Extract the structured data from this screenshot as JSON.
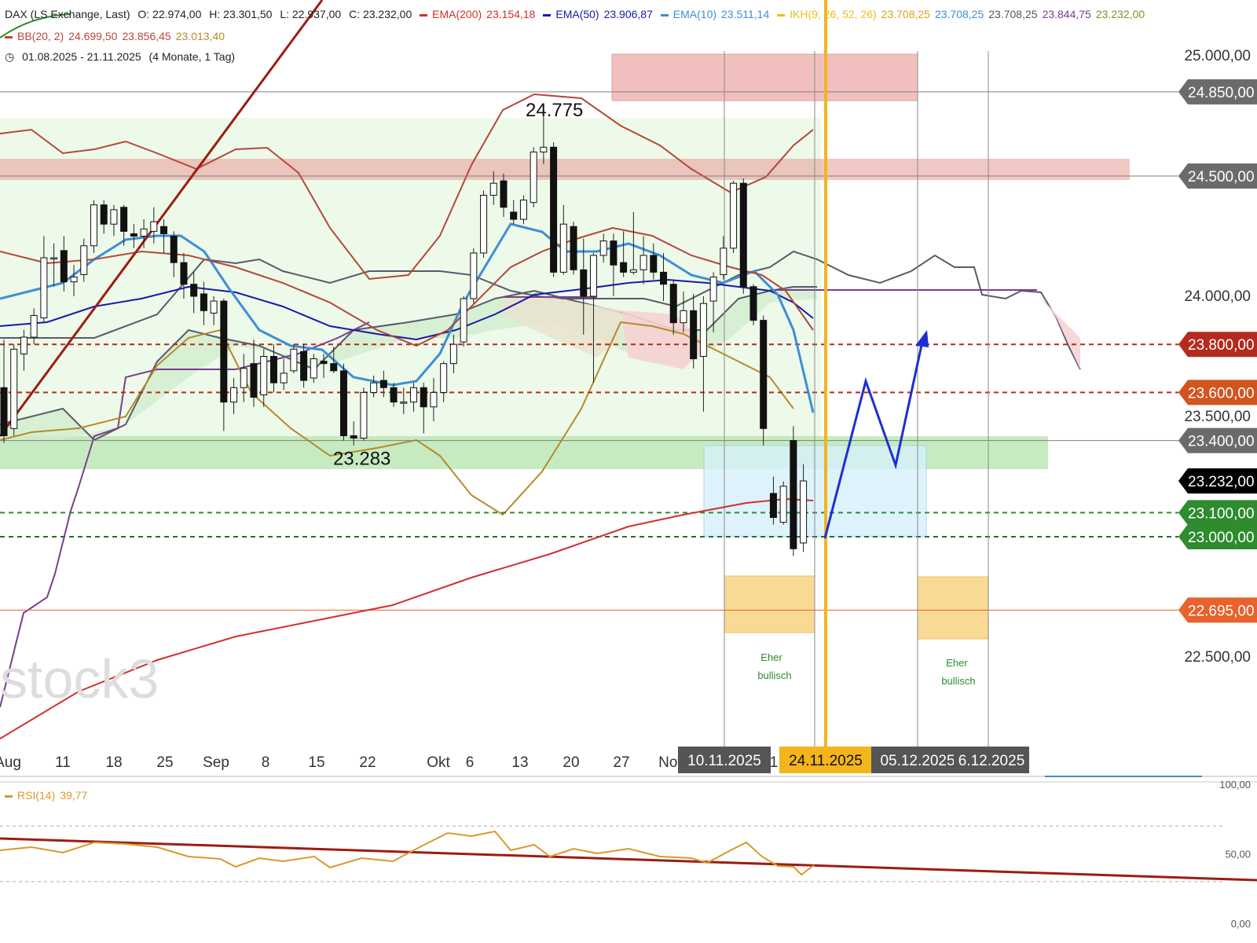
{
  "header": {
    "instrument": "DAX (LS Exchange, Last)",
    "open": "O: 22.974,00",
    "high": "H: 23.301,50",
    "low": "L: 22.937,00",
    "close": "C: 23.232,00",
    "ema200": "EMA(200)",
    "ema200_val": "23.154,18",
    "ema50": "EMA(50)",
    "ema50_val": "23.906,87",
    "ema10": "EMA(10)",
    "ema10_val": "23.511,14",
    "ikh": "IKH(9, 26, 52, 26)",
    "ikh_v1": "23.708,25",
    "ikh_v2": "23.708,25",
    "ikh_v3": "23.708,25",
    "ikh_v4": "23.844,75",
    "ikh_v5": "23.232,00",
    "bb": "BB(20, 2)",
    "bb_v1": "24.699,50",
    "bb_v2": "23.856,45",
    "bb_v3": "23.013,40",
    "range": "01.08.2025 - 21.11.2025",
    "range_info": "(4 Monate, 1 Tag)"
  },
  "colors": {
    "ema200": "#d0312d",
    "ema50": "#1a1aa8",
    "ema10": "#3c8fd6",
    "ikh": "#e8c11c",
    "bb": "#b5473a",
    "rsi": "#d89a2b"
  },
  "chart_data": {
    "type": "candlestick",
    "y_axis": {
      "ylim": [
        22300,
        25100
      ],
      "ticks": [
        "25.000,00",
        "24.000,00",
        "23.500,00",
        "22.500,00"
      ],
      "tick_values": [
        25000,
        24000,
        23500,
        22500
      ]
    },
    "x_axis": {
      "ticks": [
        "Aug",
        "11",
        "18",
        "25",
        "Sep",
        "8",
        "15",
        "22",
        "Okt",
        "6",
        "13",
        "20",
        "27",
        "Nov",
        "1",
        "2"
      ],
      "date_tags": [
        "10.11.2025",
        "24.11.2025",
        "05.12.2025",
        "6.12.2025"
      ]
    },
    "price_tags": [
      {
        "label": "24.850,00",
        "value": 24850,
        "color": "#6b6b6b"
      },
      {
        "label": "24.500,00",
        "value": 24500,
        "color": "#6b6b6b"
      },
      {
        "label": "23.800,00",
        "value": 23800,
        "color": "#b42a1e"
      },
      {
        "label": "23.600,00",
        "value": 23600,
        "color": "#d2541e"
      },
      {
        "label": "23.400,00",
        "value": 23400,
        "color": "#6b6b6b"
      },
      {
        "label": "23.232,00",
        "value": 23232,
        "color": "#000000"
      },
      {
        "label": "23.100,00",
        "value": 23100,
        "color": "#2e8b2e"
      },
      {
        "label": "23.000,00",
        "value": 23000,
        "color": "#2e8b2e"
      },
      {
        "label": "22.695,00",
        "value": 22695,
        "color": "#e8622b"
      }
    ],
    "annotations": [
      {
        "text": "24.775",
        "value": 24775
      },
      {
        "text": "23.283",
        "value": 23283
      },
      {
        "text": "Eher",
        "value": 22505
      },
      {
        "text": "bullisch",
        "value": 22430
      }
    ],
    "annotations_right": [
      {
        "text": "Eher",
        "value": 22485
      },
      {
        "text": "bullisch",
        "value": 22410
      }
    ],
    "watermark": "stock3",
    "candles": [
      {
        "date": "01.08.",
        "o": 23620,
        "h": 23820,
        "l": 23390,
        "c": 23420
      },
      {
        "date": "04.08.",
        "o": 23450,
        "h": 23800,
        "l": 23420,
        "c": 23780
      },
      {
        "date": "05.08.",
        "o": 23760,
        "h": 23860,
        "l": 23690,
        "c": 23830
      },
      {
        "date": "06.08.",
        "o": 23830,
        "h": 23950,
        "l": 23800,
        "c": 23920
      },
      {
        "date": "07.08.",
        "o": 23910,
        "h": 24250,
        "l": 23890,
        "c": 24160
      },
      {
        "date": "08.08.",
        "o": 24160,
        "h": 24220,
        "l": 24040,
        "c": 24160
      },
      {
        "date": "11.08.",
        "o": 24190,
        "h": 24250,
        "l": 24020,
        "c": 24060
      },
      {
        "date": "12.08.",
        "o": 24060,
        "h": 24130,
        "l": 24000,
        "c": 24080
      },
      {
        "date": "13.08.",
        "o": 24090,
        "h": 24240,
        "l": 24060,
        "c": 24210
      },
      {
        "date": "14.08.",
        "o": 24210,
        "h": 24400,
        "l": 24180,
        "c": 24380
      },
      {
        "date": "15.08.",
        "o": 24380,
        "h": 24400,
        "l": 24260,
        "c": 24300
      },
      {
        "date": "18.08.",
        "o": 24300,
        "h": 24380,
        "l": 24250,
        "c": 24360
      },
      {
        "date": "19.08.",
        "o": 24370,
        "h": 24380,
        "l": 24210,
        "c": 24270
      },
      {
        "date": "20.08.",
        "o": 24260,
        "h": 24300,
        "l": 24200,
        "c": 24250
      },
      {
        "date": "21.08.",
        "o": 24250,
        "h": 24320,
        "l": 24200,
        "c": 24280
      },
      {
        "date": "22.08.",
        "o": 24270,
        "h": 24370,
        "l": 24220,
        "c": 24310
      },
      {
        "date": "25.08.",
        "o": 24290,
        "h": 24320,
        "l": 24180,
        "c": 24260
      },
      {
        "date": "26.08.",
        "o": 24250,
        "h": 24270,
        "l": 24080,
        "c": 24140
      },
      {
        "date": "27.08.",
        "o": 24140,
        "h": 24180,
        "l": 23990,
        "c": 24050
      },
      {
        "date": "28.08.",
        "o": 24050,
        "h": 24100,
        "l": 23930,
        "c": 24000
      },
      {
        "date": "29.08.",
        "o": 24010,
        "h": 24060,
        "l": 23880,
        "c": 23940
      },
      {
        "date": "01.09.",
        "o": 23930,
        "h": 24000,
        "l": 23880,
        "c": 23980
      },
      {
        "date": "02.09.",
        "o": 23980,
        "h": 23990,
        "l": 23440,
        "c": 23560
      },
      {
        "date": "03.09.",
        "o": 23560,
        "h": 23660,
        "l": 23510,
        "c": 23620
      },
      {
        "date": "04.09.",
        "o": 23620,
        "h": 23760,
        "l": 23560,
        "c": 23700
      },
      {
        "date": "05.09.",
        "o": 23720,
        "h": 23820,
        "l": 23540,
        "c": 23580
      },
      {
        "date": "08.09.",
        "o": 23590,
        "h": 23780,
        "l": 23540,
        "c": 23750
      },
      {
        "date": "09.09.",
        "o": 23750,
        "h": 23800,
        "l": 23600,
        "c": 23640
      },
      {
        "date": "10.09.",
        "o": 23640,
        "h": 23740,
        "l": 23610,
        "c": 23680
      },
      {
        "date": "11.09.",
        "o": 23690,
        "h": 23800,
        "l": 23680,
        "c": 23780
      },
      {
        "date": "12.09.",
        "o": 23770,
        "h": 23800,
        "l": 23620,
        "c": 23650
      },
      {
        "date": "15.09.",
        "o": 23660,
        "h": 23760,
        "l": 23640,
        "c": 23740
      },
      {
        "date": "16.09.",
        "o": 23730,
        "h": 23760,
        "l": 23660,
        "c": 23720
      },
      {
        "date": "17.09.",
        "o": 23720,
        "h": 23790,
        "l": 23680,
        "c": 23690
      },
      {
        "date": "18.09.",
        "o": 23690,
        "h": 23720,
        "l": 23400,
        "c": 23420
      },
      {
        "date": "19.09.",
        "o": 23420,
        "h": 23480,
        "l": 23380,
        "c": 23410
      },
      {
        "date": "22.09.",
        "o": 23410,
        "h": 23620,
        "l": 23400,
        "c": 23600
      },
      {
        "date": "23.09.",
        "o": 23600,
        "h": 23670,
        "l": 23580,
        "c": 23640
      },
      {
        "date": "24.09.",
        "o": 23650,
        "h": 23690,
        "l": 23580,
        "c": 23620
      },
      {
        "date": "25.09.",
        "o": 23620,
        "h": 23640,
        "l": 23540,
        "c": 23560
      },
      {
        "date": "26.09.",
        "o": 23560,
        "h": 23620,
        "l": 23510,
        "c": 23560
      },
      {
        "date": "29.09.",
        "o": 23560,
        "h": 23640,
        "l": 23520,
        "c": 23620
      },
      {
        "date": "30.09.",
        "o": 23620,
        "h": 23640,
        "l": 23430,
        "c": 23540
      },
      {
        "date": "01.10.",
        "o": 23540,
        "h": 23660,
        "l": 23480,
        "c": 23600
      },
      {
        "date": "02.10.",
        "o": 23600,
        "h": 23730,
        "l": 23560,
        "c": 23720
      },
      {
        "date": "03.10.",
        "o": 23720,
        "h": 23840,
        "l": 23680,
        "c": 23800
      },
      {
        "date": "06.10.",
        "o": 23810,
        "h": 24000,
        "l": 23790,
        "c": 23990
      },
      {
        "date": "07.10.",
        "o": 23990,
        "h": 24200,
        "l": 23970,
        "c": 24180
      },
      {
        "date": "08.10.",
        "o": 24180,
        "h": 24440,
        "l": 24160,
        "c": 24420
      },
      {
        "date": "09.10.",
        "o": 24420,
        "h": 24520,
        "l": 24380,
        "c": 24470
      },
      {
        "date": "10.10.",
        "o": 24480,
        "h": 24510,
        "l": 24330,
        "c": 24370
      },
      {
        "date": "13.10.",
        "o": 24350,
        "h": 24400,
        "l": 24300,
        "c": 24320
      },
      {
        "date": "14.10.",
        "o": 24320,
        "h": 24420,
        "l": 24300,
        "c": 24400
      },
      {
        "date": "15.10.",
        "o": 24390,
        "h": 24620,
        "l": 24370,
        "c": 24600
      },
      {
        "date": "16.10.",
        "o": 24600,
        "h": 24775,
        "l": 24550,
        "c": 24620
      },
      {
        "date": "17.10.",
        "o": 24620,
        "h": 24640,
        "l": 24080,
        "c": 24100
      },
      {
        "date": "20.10.",
        "o": 24100,
        "h": 24380,
        "l": 24090,
        "c": 24300
      },
      {
        "date": "21.10.",
        "o": 24290,
        "h": 24310,
        "l": 24090,
        "c": 24110
      },
      {
        "date": "22.10.",
        "o": 24110,
        "h": 24240,
        "l": 23840,
        "c": 24000
      },
      {
        "date": "23.10.",
        "o": 24000,
        "h": 24180,
        "l": 23640,
        "c": 24170
      },
      {
        "date": "24.10.",
        "o": 24170,
        "h": 24260,
        "l": 24140,
        "c": 24230
      },
      {
        "date": "27.10.",
        "o": 24230,
        "h": 24260,
        "l": 24000,
        "c": 24130
      },
      {
        "date": "28.10.",
        "o": 24140,
        "h": 24270,
        "l": 24080,
        "c": 24100
      },
      {
        "date": "29.10.",
        "o": 24100,
        "h": 24350,
        "l": 24090,
        "c": 24110
      },
      {
        "date": "30.10.",
        "o": 24110,
        "h": 24250,
        "l": 24050,
        "c": 24170
      },
      {
        "date": "31.10.",
        "o": 24170,
        "h": 24220,
        "l": 24070,
        "c": 24100
      },
      {
        "date": "03.11.",
        "o": 24100,
        "h": 24180,
        "l": 23980,
        "c": 24050
      },
      {
        "date": "04.11.",
        "o": 24050,
        "h": 24070,
        "l": 23840,
        "c": 23890
      },
      {
        "date": "05.11.",
        "o": 23890,
        "h": 24020,
        "l": 23850,
        "c": 23940
      },
      {
        "date": "06.11.",
        "o": 23940,
        "h": 24010,
        "l": 23700,
        "c": 23740
      },
      {
        "date": "07.11.",
        "o": 23750,
        "h": 24000,
        "l": 23520,
        "c": 23970
      },
      {
        "date": "10.11.",
        "o": 23980,
        "h": 24100,
        "l": 23850,
        "c": 24080
      },
      {
        "date": "11.11.",
        "o": 24090,
        "h": 24250,
        "l": 24070,
        "c": 24200
      },
      {
        "date": "12.11.",
        "o": 24200,
        "h": 24480,
        "l": 24180,
        "c": 24470
      },
      {
        "date": "13.11.",
        "o": 24470,
        "h": 24490,
        "l": 24010,
        "c": 24040
      },
      {
        "date": "14.11.",
        "o": 24040,
        "h": 24050,
        "l": 23880,
        "c": 23900
      },
      {
        "date": "17.11.",
        "o": 23900,
        "h": 23920,
        "l": 23380,
        "c": 23450
      },
      {
        "date": "18.11.",
        "o": 23180,
        "h": 23250,
        "l": 23050,
        "c": 23080
      },
      {
        "date": "19.11.",
        "o": 23060,
        "h": 23230,
        "l": 23050,
        "c": 23210
      },
      {
        "date": "20.11.",
        "o": 23400,
        "h": 23460,
        "l": 22920,
        "c": 22950
      },
      {
        "date": "21.11.",
        "o": 22974,
        "h": 23301.5,
        "l": 22937,
        "c": 23232
      }
    ],
    "rsi": {
      "label": "RSI(14)",
      "value": "39,77",
      "ylim": [
        0,
        100
      ],
      "ticks": [
        "100,00",
        "50,00",
        "0,00"
      ],
      "tick_values": [
        100,
        50,
        0
      ]
    }
  }
}
